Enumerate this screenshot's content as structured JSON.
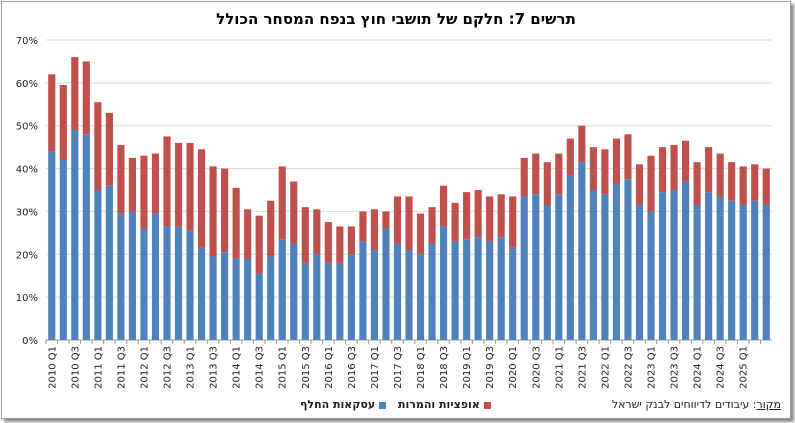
{
  "title": "תרשים 7: חלקם של תושבי חוץ בנפח המסחר הכולל",
  "source_label": "מקור",
  "source_text": ": עיבודים לדיווחים לבנק ישראל",
  "colors": {
    "series1": "#4f81bd",
    "series2": "#c0504d",
    "grid": "#d9d9d9"
  },
  "chart_data": {
    "type": "bar",
    "stacked": true,
    "title": "תרשים 7: חלקם של תושבי חוץ בנפח המסחר הכולל",
    "ylim": [
      0,
      70
    ],
    "yticks": [
      "0%",
      "10%",
      "20%",
      "30%",
      "40%",
      "50%",
      "60%",
      "70%"
    ],
    "grid": true,
    "legend_position": "bottom",
    "categories": [
      "2010 Q1",
      "2010 Q2",
      "2010 Q3",
      "2010 Q4",
      "2011 Q1",
      "2011 Q2",
      "2011 Q3",
      "2011 Q4",
      "2012 Q1",
      "2012 Q2",
      "2012 Q3",
      "2012 Q4",
      "2013 Q1",
      "2013 Q2",
      "2013 Q3",
      "2013 Q4",
      "2014 Q1",
      "2014 Q2",
      "2014 Q3",
      "2014 Q4",
      "2015 Q1",
      "2015 Q2",
      "2015 Q3",
      "2015 Q4",
      "2016 Q1",
      "2016 Q2",
      "2016 Q3",
      "2016 Q4",
      "2017 Q1",
      "2017 Q2",
      "2017 Q3",
      "2017 Q4",
      "2018 Q1",
      "2018 Q2",
      "2018 Q3",
      "2018 Q4",
      "2019 Q1",
      "2019 Q2",
      "2019 Q3",
      "2019 Q4",
      "2020 Q1",
      "2020 Q2",
      "2020 Q3",
      "2020 Q4",
      "2021 Q1",
      "2021 Q2",
      "2021 Q3",
      "2021 Q4",
      "2022 Q1",
      "2022 Q2",
      "2022 Q3",
      "2022 Q4",
      "2023 Q1",
      "2023 Q2",
      "2023 Q3",
      "2023 Q4",
      "2024 Q1",
      "2024 Q2",
      "2024 Q3",
      "2024 Q4",
      "2025 Q1",
      "2025 Q2",
      "2025 Q3"
    ],
    "tick_labels": [
      "2010 Q1",
      "",
      "2010 Q3",
      "",
      "2011 Q1",
      "",
      "2011 Q3",
      "",
      "2012 Q1",
      "",
      "2012 Q3",
      "",
      "2013 Q1",
      "",
      "2013 Q3",
      "",
      "2014 Q1",
      "",
      "2014 Q3",
      "",
      "2015 Q1",
      "",
      "2015 Q3",
      "",
      "2016 Q1",
      "",
      "2016 Q3",
      "",
      "2017 Q1",
      "",
      "2017 Q3",
      "",
      "2018 Q1",
      "",
      "2018 Q3",
      "",
      "2019 Q1",
      "",
      "2019 Q3",
      "",
      "2020 Q1",
      "",
      "2020 Q3",
      "",
      "2021 Q1",
      "",
      "2021 Q3",
      "",
      "2022 Q1",
      "",
      "2022 Q3",
      "",
      "2023 Q1",
      "",
      "2023 Q3",
      "",
      "2024 Q1",
      "",
      "2024 Q3",
      "",
      "2025 Q1",
      "",
      ""
    ],
    "series": [
      {
        "name": "עסקאות החלף",
        "values": [
          44,
          42,
          49,
          48,
          35,
          36,
          29.5,
          30,
          26,
          29.5,
          26.5,
          26.5,
          25.5,
          21.5,
          19.5,
          20.5,
          19,
          19,
          15.5,
          19.5,
          23.5,
          22.5,
          18,
          20,
          18,
          18,
          20,
          23,
          21,
          26,
          22.5,
          21,
          20,
          22.5,
          26.5,
          23,
          23.5,
          24,
          23,
          24,
          21.5,
          33.5,
          34,
          31.5,
          34,
          38.5,
          41.5,
          35,
          34,
          36.5,
          37.5,
          31.5,
          30,
          34.5,
          35,
          37,
          31.5,
          34.5,
          33.5,
          32.5,
          31.5,
          32.5,
          31.5
        ]
      },
      {
        "name": "אופציות והמרות",
        "values": [
          18,
          17.5,
          17,
          17,
          20.5,
          17,
          16,
          12.5,
          17,
          14,
          21,
          19.5,
          20.5,
          23,
          21,
          19.5,
          16.5,
          11.5,
          13.5,
          13,
          17,
          14.5,
          13,
          10.5,
          9.5,
          8.5,
          6.5,
          7,
          9.5,
          4,
          11,
          12.5,
          9.5,
          8.5,
          9.5,
          9,
          11,
          11,
          10.5,
          10,
          12,
          9,
          9.5,
          10,
          9.5,
          8.5,
          8.5,
          10,
          10.5,
          10.5,
          10.5,
          9.5,
          13,
          10.5,
          10.5,
          9.5,
          10,
          10.5,
          10,
          9,
          9,
          8.5,
          8.5
        ]
      }
    ]
  }
}
